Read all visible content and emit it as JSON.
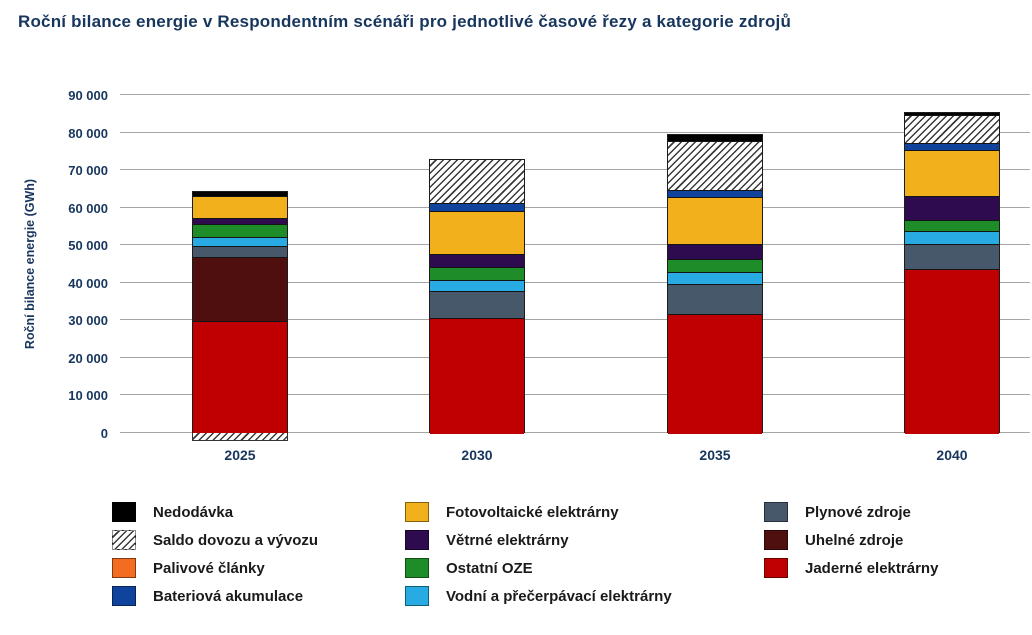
{
  "title": "Roční bilance energie v Respondentním scénáři pro jednotlivé časové řezy a kategorie zdrojů",
  "chart_data": {
    "type": "bar",
    "stacked": true,
    "title": "Roční bilance energie v Respondentním scénáři pro jednotlivé časové řezy a kategorie zdrojů",
    "xlabel": "",
    "ylabel": "Roční bilance energie (GWh)",
    "unit": "GWh",
    "ylim": [
      0,
      90000
    ],
    "ytick_step": 10000,
    "ytick_labels": [
      "0",
      "10 000",
      "20 000",
      "30 000",
      "40 000",
      "50 000",
      "60 000",
      "70 000",
      "80 000",
      "90 000"
    ],
    "grid": "horizontal",
    "categories": [
      "2025",
      "2030",
      "2035",
      "2040"
    ],
    "series": [
      {
        "name": "Jaderné elektrárny",
        "color": "#c00000",
        "values": [
          30000,
          31000,
          32000,
          44000
        ]
      },
      {
        "name": "Uhelné zdroje",
        "color": "#500f0f",
        "values": [
          17000,
          0,
          0,
          0
        ]
      },
      {
        "name": "Plynové zdroje",
        "color": "#47586b",
        "values": [
          3000,
          7000,
          8000,
          6500
        ]
      },
      {
        "name": "Vodní a přečerpávací elektrárny",
        "color": "#28aae2",
        "values": [
          2500,
          3000,
          3000,
          3500
        ]
      },
      {
        "name": "Ostatní OZE",
        "color": "#1f8c2a",
        "values": [
          3500,
          3500,
          3500,
          3000
        ]
      },
      {
        "name": "Větrné elektrárny",
        "color": "#2d0b4e",
        "values": [
          1500,
          3500,
          4000,
          6500
        ]
      },
      {
        "name": "Fotovoltaické elektrárny",
        "color": "#f2b01d",
        "values": [
          6000,
          11500,
          12500,
          12000
        ]
      },
      {
        "name": "Bateriová akumulace",
        "color": "#10439b",
        "values": [
          0,
          2000,
          2000,
          2000
        ]
      },
      {
        "name": "Palivové články",
        "color": "#f26c21",
        "values": [
          0,
          0,
          0,
          0
        ]
      },
      {
        "name": "Saldo dovozu a vývozu",
        "color": "hatch",
        "values": [
          -2000,
          11500,
          13000,
          7500
        ]
      },
      {
        "name": "Nedodávka",
        "color": "#000000",
        "values": [
          1000,
          0,
          1500,
          500
        ]
      }
    ],
    "legend": {
      "position": "bottom",
      "columns": [
        [
          {
            "label": "Nedodávka",
            "swatch": "#000000"
          },
          {
            "label": "Saldo dovozu a vývozu",
            "swatch": "hatch"
          },
          {
            "label": "Palivové články",
            "swatch": "#f26c21"
          },
          {
            "label": "Bateriová akumulace",
            "swatch": "#10439b"
          }
        ],
        [
          {
            "label": "Fotovoltaické elektrárny",
            "swatch": "#f2b01d"
          },
          {
            "label": "Větrné elektrárny",
            "swatch": "#2d0b4e"
          },
          {
            "label": "Ostatní OZE",
            "swatch": "#1f8c2a"
          },
          {
            "label": "Vodní a přečerpávací elektrárny",
            "swatch": "#28aae2"
          }
        ],
        [
          {
            "label": "Plynové zdroje",
            "swatch": "#47586b"
          },
          {
            "label": "Uhelné zdroje",
            "swatch": "#500f0f"
          },
          {
            "label": "Jaderné elektrárny",
            "swatch": "#c00000"
          }
        ]
      ]
    }
  },
  "style": {
    "title_color": "#17365d",
    "axis_label_color": "#17365d",
    "gridline_color": "#a6a6a6",
    "background": "#ffffff"
  }
}
